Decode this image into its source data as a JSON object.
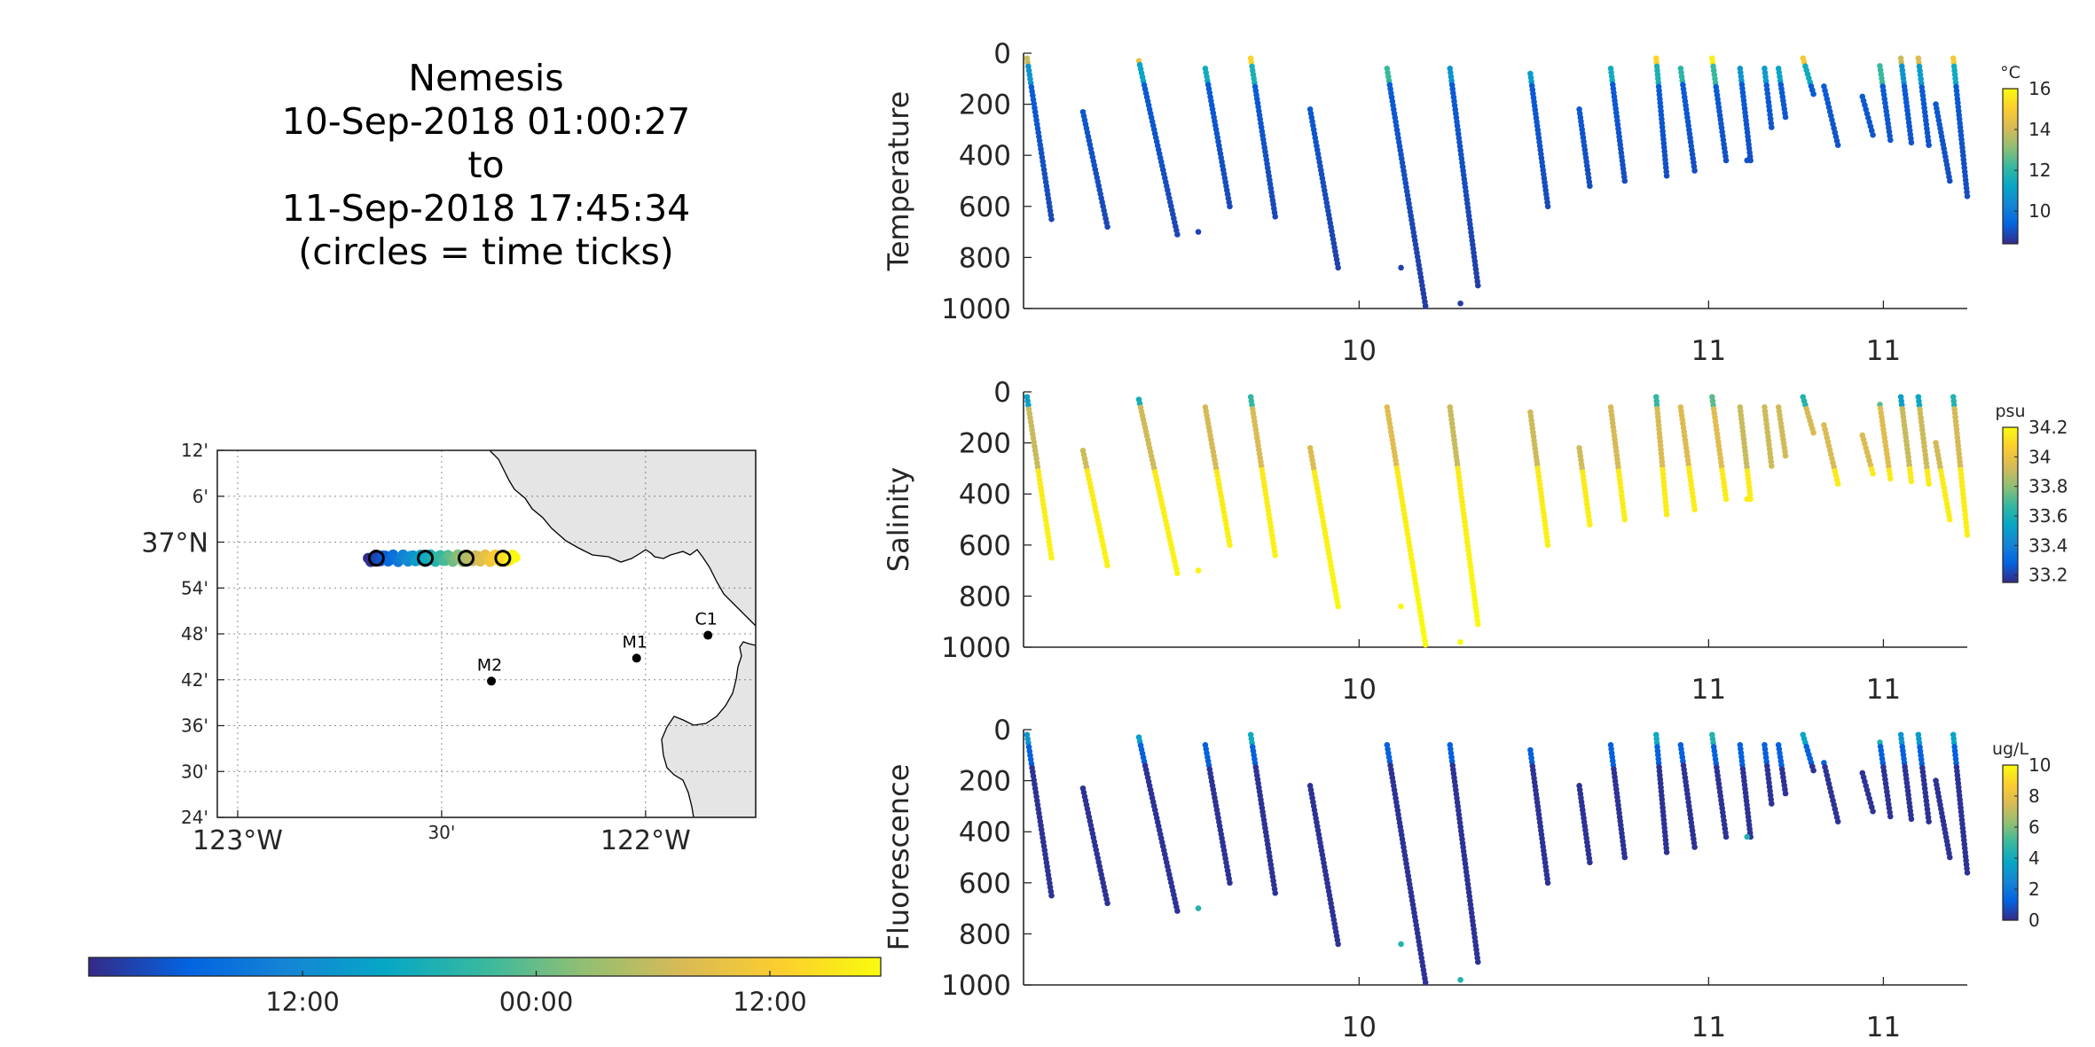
{
  "title_lines": [
    "Nemesis",
    "10-Sep-2018 01:00:27",
    "to",
    "11-Sep-2018 17:45:34",
    "(circles = time ticks)"
  ],
  "colormap": [
    "#352a87",
    "#0363e1",
    "#1485d4",
    "#06a7c6",
    "#38b99e",
    "#92bf73",
    "#d9ba56",
    "#fcce2e",
    "#f9fb0e"
  ],
  "map": {
    "lat_ticks": [
      "12'",
      "6'",
      "37°N",
      "54'",
      "48'",
      "42'",
      "36'",
      "30'",
      "24'"
    ],
    "lon_ticks": [
      "123°W",
      "30'",
      "122°W"
    ],
    "land_color": "#e5e5e5",
    "stations": [
      {
        "name": "C1",
        "lat": 36.797,
        "lon": -121.847
      },
      {
        "name": "M1",
        "lat": 36.747,
        "lon": -122.022
      },
      {
        "name": "M2",
        "lat": 36.697,
        "lon": -122.378
      }
    ]
  },
  "track": {
    "start_lon": -122.68,
    "end_lon": -122.32,
    "lat": 36.965,
    "time_circles_lon": [
      -122.66,
      -122.54,
      -122.44,
      -122.35
    ]
  },
  "time_colorbar": {
    "tick_labels": [
      "12:00",
      "00:00",
      "12:00"
    ],
    "tick_positions": [
      0.27,
      0.565,
      0.86
    ]
  },
  "panels": [
    {
      "ylabel": "Temperature",
      "unit": "°C",
      "cb_ticks": [
        "16",
        "14",
        "12",
        "10"
      ],
      "cb_tick_values": [
        16,
        14,
        12,
        10
      ],
      "cb_range": [
        8.4,
        16
      ]
    },
    {
      "ylabel": "Salinity",
      "unit": "psu",
      "cb_ticks": [
        "34.2",
        "34",
        "33.8",
        "33.6",
        "33.4",
        "33.2"
      ],
      "cb_tick_values": [
        34.2,
        34,
        33.8,
        33.6,
        33.4,
        33.2
      ],
      "cb_range": [
        33.15,
        34.2
      ]
    },
    {
      "ylabel": "Fluorescence",
      "unit": "ug/L",
      "cb_ticks": [
        "10",
        "8",
        "6",
        "4",
        "2",
        "0"
      ],
      "cb_tick_values": [
        10,
        8,
        6,
        4,
        2,
        0
      ],
      "cb_range": [
        0,
        10
      ]
    }
  ],
  "depth_ticks": [
    "0",
    "200",
    "400",
    "600",
    "800",
    "1000"
  ],
  "x_tick_labels": [
    "10",
    "11",
    "11"
  ],
  "chart_data": {
    "type": "scatter",
    "x_axis": "time (day of month, Sep 2018)",
    "xlim": [
      9.04,
      11.74
    ],
    "ylim": [
      1000,
      0
    ],
    "x_ticks": [
      10,
      11,
      11.5
    ],
    "x_tick_labels": [
      "10",
      "11",
      "11"
    ],
    "y_ticks": [
      0,
      200,
      400,
      600,
      800,
      1000
    ],
    "profiles": [
      {
        "t0": 9.05,
        "t1": 9.12,
        "top": 20,
        "bottom": 650
      },
      {
        "t0": 9.21,
        "t1": 9.28,
        "top": 230,
        "bottom": 680
      },
      {
        "t0": 9.37,
        "t1": 9.48,
        "top": 30,
        "bottom": 710
      },
      {
        "t0": 9.56,
        "t1": 9.63,
        "top": 60,
        "bottom": 600
      },
      {
        "t0": 9.69,
        "t1": 9.76,
        "top": 20,
        "bottom": 640
      },
      {
        "t0": 9.86,
        "t1": 9.94,
        "top": 220,
        "bottom": 840
      },
      {
        "t0": 10.08,
        "t1": 10.19,
        "top": 60,
        "bottom": 990
      },
      {
        "t0": 10.26,
        "t1": 10.34,
        "top": 60,
        "bottom": 910
      },
      {
        "t0": 10.49,
        "t1": 10.54,
        "top": 80,
        "bottom": 600
      },
      {
        "t0": 10.63,
        "t1": 10.66,
        "top": 220,
        "bottom": 520
      },
      {
        "t0": 10.72,
        "t1": 10.76,
        "top": 60,
        "bottom": 500
      },
      {
        "t0": 10.85,
        "t1": 10.88,
        "top": 20,
        "bottom": 480
      },
      {
        "t0": 10.92,
        "t1": 10.96,
        "top": 60,
        "bottom": 460
      },
      {
        "t0": 11.01,
        "t1": 11.05,
        "top": 20,
        "bottom": 420
      },
      {
        "t0": 11.09,
        "t1": 11.12,
        "top": 60,
        "bottom": 420
      },
      {
        "t0": 11.16,
        "t1": 11.18,
        "top": 60,
        "bottom": 290
      },
      {
        "t0": 11.2,
        "t1": 11.22,
        "top": 60,
        "bottom": 250
      },
      {
        "t0": 11.27,
        "t1": 11.3,
        "top": 20,
        "bottom": 160
      },
      {
        "t0": 11.33,
        "t1": 11.37,
        "top": 130,
        "bottom": 360
      },
      {
        "t0": 11.44,
        "t1": 11.47,
        "top": 170,
        "bottom": 320
      },
      {
        "t0": 11.49,
        "t1": 11.52,
        "top": 50,
        "bottom": 340
      },
      {
        "t0": 11.55,
        "t1": 11.58,
        "top": 20,
        "bottom": 350
      },
      {
        "t0": 11.6,
        "t1": 11.63,
        "top": 20,
        "bottom": 360
      },
      {
        "t0": 11.65,
        "t1": 11.69,
        "top": 200,
        "bottom": 500
      },
      {
        "t0": 11.7,
        "t1": 11.74,
        "top": 20,
        "bottom": 560
      }
    ],
    "isolated_points": [
      {
        "t": 9.54,
        "depth": 700
      },
      {
        "t": 10.12,
        "depth": 840
      },
      {
        "t": 10.29,
        "depth": 980
      },
      {
        "t": 11.11,
        "depth": 420
      }
    ],
    "color_variable_profiles": {
      "Temperature": "surface ~14-16 °C (yellow/orange), ~10 °C below 100 m, deep ~8.5 °C",
      "Salinity": "surface ~33.4-33.6 psu, mid ~34.0 psu, deep ~34.2 psu",
      "Fluorescence": "surface ~2-4 ug/L, ~0 ug/L below 100 m"
    }
  }
}
